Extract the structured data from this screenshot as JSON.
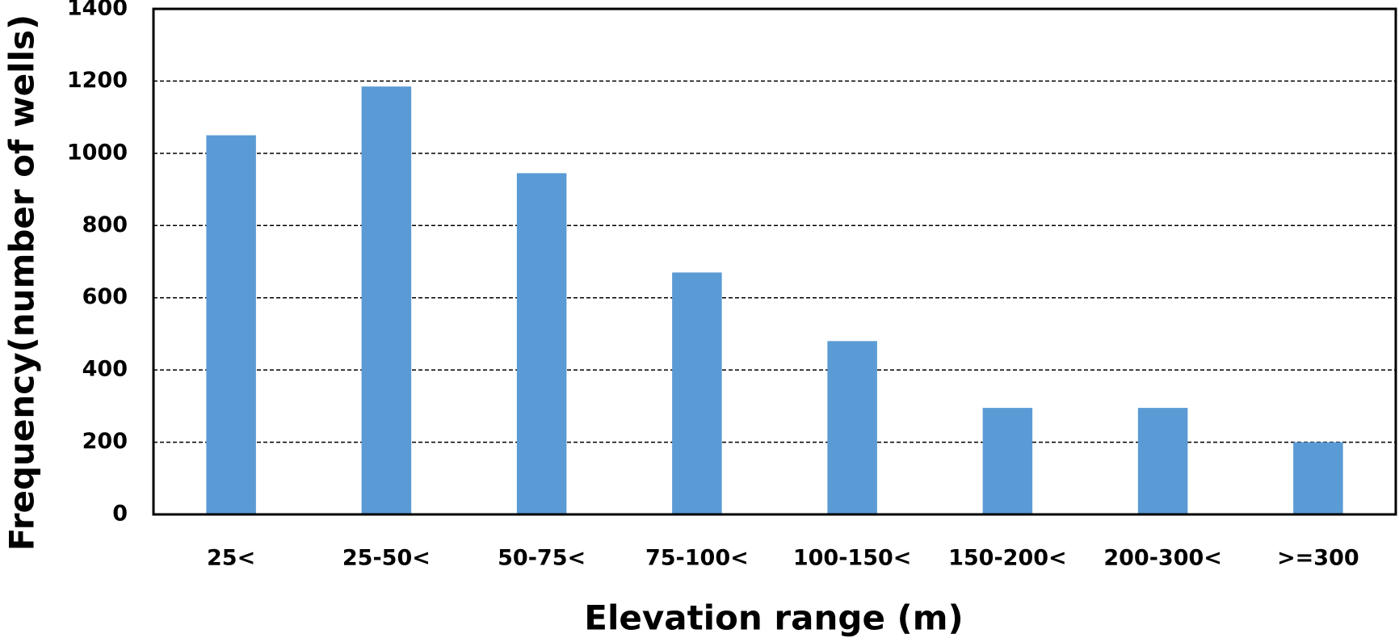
{
  "chart_data": {
    "type": "bar",
    "x_label": "Elevation range (m)",
    "y_label": "Frequency(number of wells)",
    "categories": [
      "25<",
      "25-50<",
      "50-75<",
      "75-100<",
      "100-150<",
      "150-200<",
      "200-300<",
      ">=300"
    ],
    "values": [
      1050,
      1185,
      945,
      670,
      480,
      295,
      295,
      200
    ],
    "color": "#5b9bd5",
    "ylim": [
      0,
      1400
    ],
    "yticks": [
      0,
      200,
      400,
      600,
      800,
      1000,
      1200,
      1400
    ],
    "grid": true
  }
}
